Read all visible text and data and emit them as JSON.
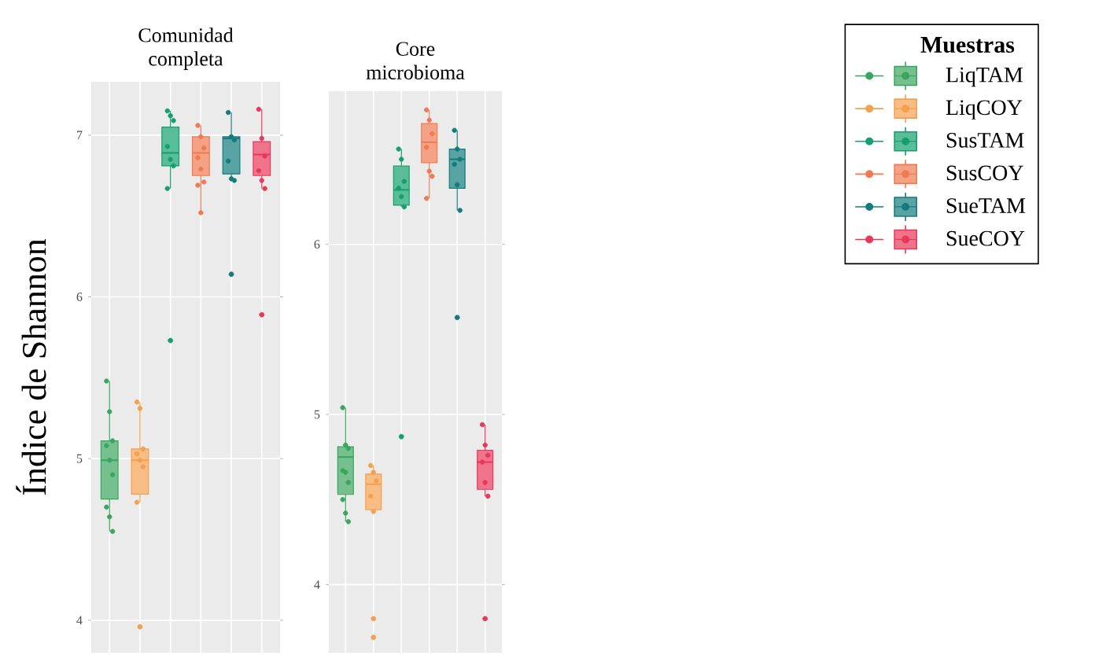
{
  "chart_data": [
    {
      "type": "box",
      "title": "Comunidad completa",
      "ylabel": "Índice de Shannon",
      "categories": [
        null,
        null,
        null,
        null,
        null,
        null
      ],
      "ylim": [
        3.8,
        7.33
      ],
      "yticks": [
        4,
        5,
        6,
        7
      ],
      "grid": true,
      "series": [
        {
          "type": "box",
          "color": "#3aa55d",
          "boxes": [
            {
              "low": 4.55,
              "q1": 4.75,
              "median": 4.99,
              "q3": 5.11,
              "high": 5.48
            },
            null,
            null,
            null,
            null,
            null
          ]
        },
        {
          "type": "box",
          "color": "#f4a04f",
          "boxes": [
            null,
            {
              "low": 4.73,
              "q1": 4.78,
              "median": 4.99,
              "q3": 5.06,
              "high": 5.35,
              "outliers": [
                3.96
              ]
            },
            null,
            null,
            null,
            null
          ]
        },
        {
          "type": "box",
          "color": "#14a06e",
          "boxes": [
            null,
            null,
            {
              "low": 6.67,
              "q1": 6.81,
              "median": 6.89,
              "q3": 7.05,
              "high": 7.15,
              "outliers": [
                5.73
              ]
            },
            null,
            null,
            null
          ]
        },
        {
          "type": "box",
          "color": "#f07a52",
          "boxes": [
            null,
            null,
            null,
            {
              "low": 6.52,
              "q1": 6.75,
              "median": 6.89,
              "q3": 6.99,
              "high": 7.06
            },
            null,
            null
          ]
        },
        {
          "type": "box",
          "color": "#147b7d",
          "boxes": [
            null,
            null,
            null,
            null,
            {
              "low": 6.72,
              "q1": 6.76,
              "median": 6.98,
              "q3": 6.99,
              "high": 7.14,
              "outliers": [
                6.14
              ]
            },
            null
          ]
        },
        {
          "type": "box",
          "color": "#e8385a",
          "boxes": [
            null,
            null,
            null,
            null,
            null,
            {
              "low": 6.67,
              "q1": 6.75,
              "median": 6.88,
              "q3": 6.96,
              "high": 7.16,
              "outliers": [
                5.89
              ]
            }
          ]
        },
        {
          "type": "scatter",
          "colors": [
            "#3aa55d",
            "#f4a04f",
            "#14a06e",
            "#f07a52",
            "#147b7d",
            "#e8385a"
          ],
          "values": [
            5.48,
            5.35,
            7.15,
            7.06,
            7.14,
            7.16
          ]
        },
        {
          "type": "scatter",
          "colors": [
            "#3aa55d",
            "#f4a04f",
            "#14a06e",
            "#f07a52",
            "#147b7d",
            "#e8385a"
          ],
          "values": [
            5.29,
            5.31,
            7.12,
            6.99,
            6.99,
            6.98
          ]
        },
        {
          "type": "scatter",
          "colors": [
            "#3aa55d",
            "#f4a04f",
            "#14a06e",
            "#f07a52",
            "#147b7d",
            "#e8385a"
          ],
          "values": [
            5.11,
            5.06,
            7.09,
            6.92,
            6.97,
            6.87
          ]
        },
        {
          "type": "scatter",
          "colors": [
            "#3aa55d",
            "#f4a04f",
            "#14a06e",
            "#f07a52",
            "#147b7d",
            "#e8385a"
          ],
          "values": [
            5.08,
            5.03,
            6.93,
            6.86,
            6.84,
            6.78
          ]
        },
        {
          "type": "scatter",
          "colors": [
            "#3aa55d",
            "#f4a04f",
            "#14a06e",
            "#f07a52",
            "#147b7d",
            "#e8385a"
          ],
          "values": [
            4.99,
            4.99,
            6.85,
            6.79,
            6.73,
            6.72
          ]
        },
        {
          "type": "scatter",
          "colors": [
            "#3aa55d",
            "#f4a04f",
            "#14a06e",
            "#f07a52",
            "#147b7d",
            "#e8385a"
          ],
          "values": [
            4.9,
            4.95,
            6.81,
            6.71,
            6.72,
            6.67
          ]
        },
        {
          "type": "scatter",
          "colors": [
            "#3aa55d",
            "#f4a04f",
            "#14a06e",
            "#f07a52",
            "#147b7d",
            "#e8385a"
          ],
          "values": [
            4.7,
            4.73,
            6.67,
            6.69,
            null,
            null
          ]
        },
        {
          "type": "scatter",
          "colors": [
            "#3aa55d",
            "#f4a04f",
            "#14a06e",
            "#f07a52",
            "#147b7d",
            "#e8385a"
          ],
          "values": [
            4.64,
            null,
            null,
            6.52,
            null,
            null
          ]
        },
        {
          "type": "scatter",
          "colors": [
            "#3aa55d",
            "#f4a04f",
            "#14a06e",
            "#f07a52",
            "#147b7d",
            "#e8385a"
          ],
          "values": [
            4.55,
            null,
            null,
            null,
            null,
            null
          ]
        }
      ]
    },
    {
      "type": "box",
      "title": "Core microbioma",
      "legend_title": "Muestras",
      "legend": "right",
      "categories": [
        null,
        null,
        null,
        null,
        null,
        null
      ],
      "ylim": [
        3.6,
        6.9
      ],
      "yticks": [
        4,
        5,
        6
      ],
      "grid": true,
      "series": [
        {
          "type": "box",
          "name": "LiqTAM",
          "color": "#3aa55d",
          "boxes": [
            {
              "low": 4.37,
              "q1": 4.53,
              "median": 4.75,
              "q3": 4.81,
              "high": 5.04
            },
            null,
            null,
            null,
            null,
            null
          ]
        },
        {
          "type": "box",
          "name": "LiqCOY",
          "color": "#f4a04f",
          "boxes": [
            null,
            {
              "low": 4.43,
              "q1": 4.44,
              "median": 4.59,
              "q3": 4.65,
              "high": 4.7,
              "outliers": [
                3.8,
                3.69
              ]
            },
            null,
            null,
            null,
            null
          ]
        },
        {
          "type": "box",
          "name": "SusTAM",
          "color": "#14a06e",
          "boxes": [
            null,
            null,
            {
              "low": 6.22,
              "q1": 6.23,
              "median": 6.32,
              "q3": 6.46,
              "high": 6.56,
              "outliers": [
                4.87
              ]
            },
            null,
            null,
            null
          ]
        },
        {
          "type": "box",
          "name": "SusCOY",
          "color": "#f07a52",
          "boxes": [
            null,
            null,
            null,
            {
              "low": 6.27,
              "q1": 6.48,
              "median": 6.6,
              "q3": 6.71,
              "high": 6.79
            },
            null,
            null
          ]
        },
        {
          "type": "box",
          "name": "SueTAM",
          "color": "#147b7d",
          "boxes": [
            null,
            null,
            null,
            null,
            {
              "low": 6.2,
              "q1": 6.33,
              "median": 6.5,
              "q3": 6.56,
              "high": 6.67,
              "outliers": [
                5.57
              ]
            },
            null
          ]
        },
        {
          "type": "box",
          "name": "SueCOY",
          "color": "#e8385a",
          "boxes": [
            null,
            null,
            null,
            null,
            null,
            {
              "low": 4.52,
              "q1": 4.56,
              "median": 4.72,
              "q3": 4.79,
              "high": 4.94,
              "outliers": [
                3.8
              ]
            }
          ]
        },
        {
          "type": "scatter",
          "colors": [
            "#3aa55d",
            "#f4a04f",
            "#14a06e",
            "#f07a52",
            "#147b7d",
            "#e8385a"
          ],
          "values": [
            5.04,
            4.7,
            6.56,
            6.79,
            6.67,
            4.94
          ]
        },
        {
          "type": "scatter",
          "colors": [
            "#3aa55d",
            "#f4a04f",
            "#14a06e",
            "#f07a52",
            "#147b7d",
            "#e8385a"
          ],
          "values": [
            4.82,
            4.66,
            6.5,
            6.73,
            6.56,
            4.82
          ]
        },
        {
          "type": "scatter",
          "colors": [
            "#3aa55d",
            "#f4a04f",
            "#14a06e",
            "#f07a52",
            "#147b7d",
            "#e8385a"
          ],
          "values": [
            4.8,
            4.61,
            6.37,
            6.65,
            6.5,
            4.76
          ]
        },
        {
          "type": "scatter",
          "colors": [
            "#3aa55d",
            "#f4a04f",
            "#14a06e",
            "#f07a52",
            "#147b7d",
            "#e8385a"
          ],
          "values": [
            4.67,
            4.52,
            6.33,
            6.57,
            6.47,
            4.72
          ]
        },
        {
          "type": "scatter",
          "colors": [
            "#3aa55d",
            "#f4a04f",
            "#14a06e",
            "#f07a52",
            "#147b7d",
            "#e8385a"
          ],
          "values": [
            4.66,
            4.43,
            6.28,
            6.43,
            6.35,
            4.6
          ]
        },
        {
          "type": "scatter",
          "colors": [
            "#3aa55d",
            "#f4a04f",
            "#14a06e",
            "#f07a52",
            "#147b7d",
            "#e8385a"
          ],
          "values": [
            4.6,
            null,
            6.22,
            6.4,
            6.2,
            4.52
          ]
        },
        {
          "type": "scatter",
          "colors": [
            "#3aa55d",
            "#f4a04f",
            "#14a06e",
            "#f07a52",
            "#147b7d",
            "#e8385a"
          ],
          "values": [
            4.5,
            null,
            null,
            6.27,
            null,
            null
          ]
        },
        {
          "type": "scatter",
          "colors": [
            "#3aa55d",
            "#f4a04f",
            "#14a06e",
            "#f07a52",
            "#147b7d",
            "#e8385a"
          ],
          "values": [
            4.42,
            null,
            null,
            null,
            null,
            null
          ]
        },
        {
          "type": "scatter",
          "colors": [
            "#3aa55d",
            "#f4a04f",
            "#14a06e",
            "#f07a52",
            "#147b7d",
            "#e8385a"
          ],
          "values": [
            4.37,
            null,
            null,
            null,
            null,
            null
          ]
        }
      ]
    }
  ]
}
